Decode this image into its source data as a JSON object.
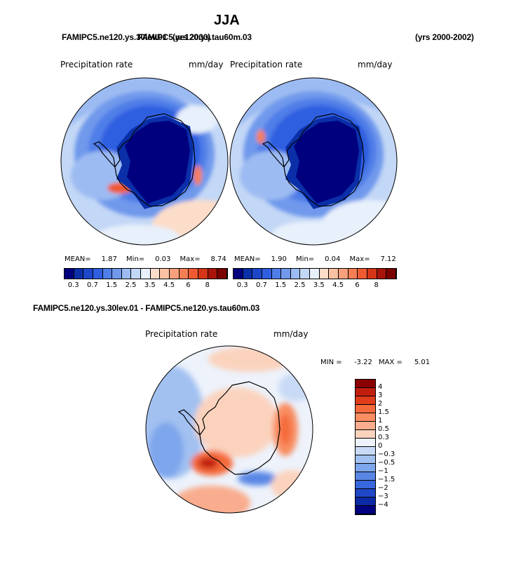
{
  "title": "JJA",
  "header": {
    "overlap_text_a": "FAMIPC5.ne120.ys.30lev.01",
    "overlap_text_b": "FAMIPC5.ne120.ys.tau60m.03",
    "overlap_text_c": "(yrs 2000)",
    "years": "(yrs 2000-2002)"
  },
  "panels": [
    {
      "variable": "Precipitation rate",
      "units": "mm/day",
      "stats": {
        "mean_label": "MEAN=",
        "mean": "1.87",
        "min_label": "Min=",
        "min": "0.03",
        "max_label": "Max=",
        "max": "8.74"
      }
    },
    {
      "variable": "Precipitation rate",
      "units": "mm/day",
      "stats": {
        "mean_label": "MEAN=",
        "mean": "1.90",
        "min_label": "Min=",
        "min": "0.04",
        "max_label": "Max=",
        "max": "7.12"
      }
    }
  ],
  "colorbar_top": {
    "colors": [
      "#00007f",
      "#0a2fa8",
      "#1d47c9",
      "#2f5ee0",
      "#4f7ee8",
      "#7099ec",
      "#9cbbf2",
      "#c3d7f6",
      "#e8f0fb",
      "#fcddc9",
      "#fbc1a3",
      "#f8a07c",
      "#f67e55",
      "#ef5a32",
      "#d43417",
      "#a8140a",
      "#7a0000"
    ],
    "tick_labels": [
      "0.3",
      "0.7",
      "1.5",
      "2.5",
      "3.5",
      "4.5",
      "6",
      "8"
    ]
  },
  "diff": {
    "title": "FAMIPC5.ne120.ys.30lev.01 - FAMIPC5.ne120.ys.tau60m.03",
    "variable": "Precipitation rate",
    "units": "mm/day",
    "min_label": "MIN =",
    "min": "-3.22",
    "max_label": "MAX =",
    "max": "5.01"
  },
  "colorbar_diff": {
    "colors": [
      "#8b0000",
      "#c21e0e",
      "#e03c1a",
      "#f56a3a",
      "#f88e62",
      "#f9ad8e",
      "#fbd3bd",
      "#edf2fb",
      "#c8daf5",
      "#a2c1f1",
      "#7ea6ec",
      "#5a87e5",
      "#3866dc",
      "#1f47c6",
      "#0d2aa6",
      "#000080"
    ],
    "tick_labels": [
      "4",
      "3",
      "2",
      "1.5",
      "1",
      "0.5",
      "0.3",
      "0",
      "−0.3",
      "−0.5",
      "−1",
      "−1.5",
      "−2",
      "−3",
      "−4"
    ]
  }
}
